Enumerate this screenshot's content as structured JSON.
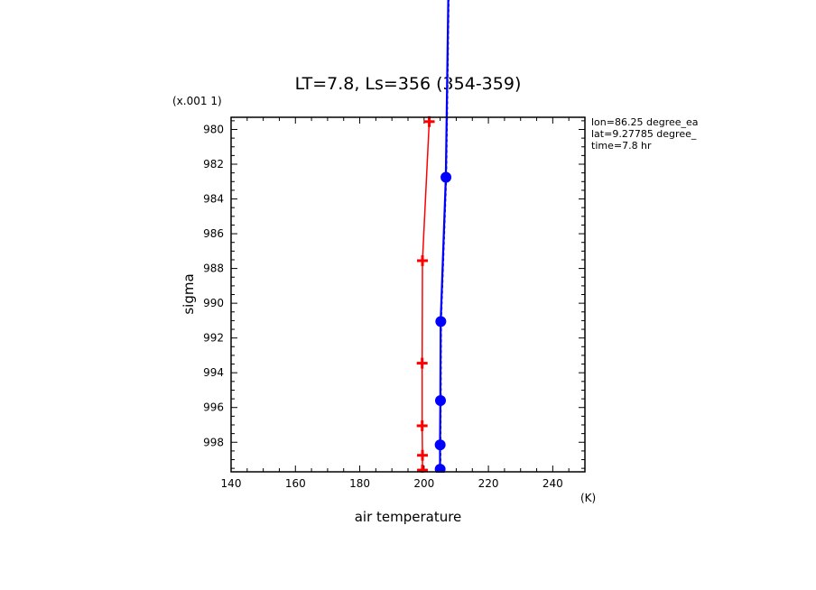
{
  "chart_data": {
    "type": "line",
    "title": "LT=7.8, Ls=356 (354-359)",
    "xlabel": "air temperature",
    "xunit": "(K)",
    "ylabel": "sigma",
    "yunit": "(x.001 1)",
    "xlim": [
      140,
      250
    ],
    "ylim": [
      979.3,
      999.7
    ],
    "y_reversed": true,
    "x_ticks": [
      140,
      160,
      180,
      200,
      220,
      240
    ],
    "y_ticks": [
      980,
      982,
      984,
      986,
      988,
      990,
      992,
      994,
      996,
      998
    ],
    "info_lines": [
      "lon=86.25 degree_ea",
      "lat=9.27785 degree_",
      "time=7.8 hr"
    ],
    "series": [
      {
        "color": "#ff0000",
        "marker": "plus",
        "points": [
          {
            "x": 201.6,
            "y": 979.55
          },
          {
            "x": 199.5,
            "y": 987.55
          },
          {
            "x": 199.4,
            "y": 993.45
          },
          {
            "x": 199.4,
            "y": 997.05
          },
          {
            "x": 199.5,
            "y": 998.75
          },
          {
            "x": 199.5,
            "y": 999.6
          }
        ]
      },
      {
        "color": "#0000ff",
        "marker": "circle",
        "points": [
          {
            "x": 207.6,
            "y": 972.0
          },
          {
            "x": 206.8,
            "y": 982.75
          },
          {
            "x": 205.2,
            "y": 991.05
          },
          {
            "x": 205.1,
            "y": 995.6
          },
          {
            "x": 205.0,
            "y": 998.15
          },
          {
            "x": 205.0,
            "y": 999.55
          }
        ]
      }
    ]
  }
}
